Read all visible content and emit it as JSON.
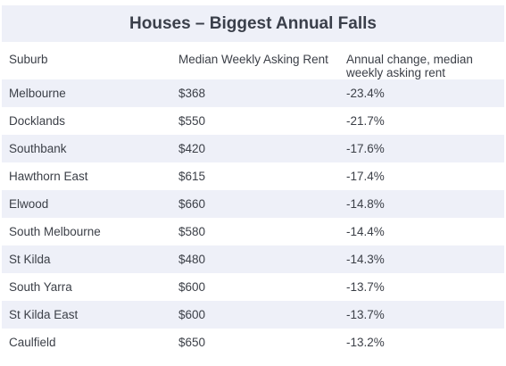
{
  "title": "Houses – Biggest Annual Falls",
  "columns": [
    "Suburb",
    "Median Weekly Asking Rent",
    "Annual change, median weekly asking rent"
  ],
  "rows": [
    {
      "suburb": "Melbourne",
      "rent": "$368",
      "change": "-23.4%"
    },
    {
      "suburb": "Docklands",
      "rent": "$550",
      "change": "-21.7%"
    },
    {
      "suburb": "Southbank",
      "rent": "$420",
      "change": "-17.6%"
    },
    {
      "suburb": "Hawthorn East",
      "rent": "$615",
      "change": "-17.4%"
    },
    {
      "suburb": "Elwood",
      "rent": "$660",
      "change": "-14.8%"
    },
    {
      "suburb": "South Melbourne",
      "rent": "$580",
      "change": "-14.4%"
    },
    {
      "suburb": "St Kilda",
      "rent": "$480",
      "change": "-14.3%"
    },
    {
      "suburb": "South Yarra",
      "rent": "$600",
      "change": "-13.7%"
    },
    {
      "suburb": "St Kilda East",
      "rent": "$600",
      "change": "-13.7%"
    },
    {
      "suburb": "Caulfield",
      "rent": "$650",
      "change": "-13.2%"
    }
  ]
}
